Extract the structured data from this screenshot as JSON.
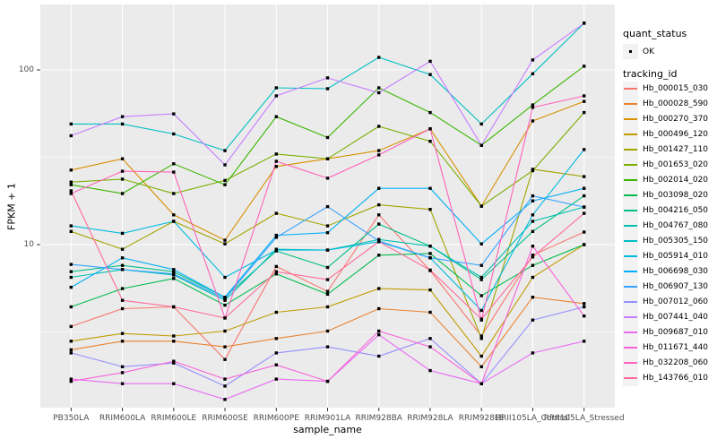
{
  "figure": {
    "xlabel": "sample_name",
    "ylabel": "FPKM + 1",
    "y_tick_labels": [
      "100",
      "10"
    ],
    "legend": {
      "quant_status_title": "quant_status",
      "quant_status_items": [
        {
          "label": "OK",
          "marker": "black-point"
        }
      ],
      "tracking_id_title": "tracking_id"
    },
    "colors": {
      "panel_background": "#EBEBEB",
      "gridline": "#FFFFFF",
      "tick_text": "#4D4D4D",
      "legend_key_background": "#F2F2F2",
      "point_marker": "#000000"
    }
  },
  "chart_data": {
    "type": "line",
    "title": "",
    "xlabel": "sample_name",
    "ylabel": "FPKM + 1",
    "yscale": "log10",
    "ylim": [
      1.17,
      237
    ],
    "y_major_gridlines": [
      10,
      100
    ],
    "y_minor_gridlines": [
      3.162,
      31.623
    ],
    "grid": "on",
    "legend_position": "right",
    "marker": "small-black-square",
    "categories": [
      "PB350LA",
      "RRIM600LA",
      "RRIM600LE",
      "RRIM600SE",
      "RRIM600PE",
      "RRIM901LA",
      "RRIM928BA",
      "RRIM928LA",
      "RRIM928LE",
      "RRII105LA_Control",
      "RRII105LA_Stressed"
    ],
    "series": [
      {
        "name": "Hb_000015_030",
        "color": "#F8766D",
        "values": [
          3.4,
          4.3,
          4.4,
          2.2,
          7.5,
          5.4,
          14.8,
          7.1,
          3.0,
          8.7,
          11.8
        ]
      },
      {
        "name": "Hb_000028_590",
        "color": "#EA8331",
        "values": [
          2.5,
          2.8,
          2.8,
          2.6,
          2.9,
          3.2,
          4.3,
          4.1,
          2.0,
          5.0,
          4.6
        ]
      },
      {
        "name": "Hb_000270_370",
        "color": "#D89000",
        "values": [
          26.7,
          31.0,
          14.8,
          10.6,
          28.0,
          31.0,
          34.5,
          46.0,
          16.6,
          51.0,
          66.0
        ]
      },
      {
        "name": "Hb_000496_120",
        "color": "#C09B00",
        "values": [
          2.8,
          3.1,
          3.0,
          3.2,
          4.1,
          4.4,
          5.6,
          5.5,
          2.3,
          6.5,
          10.0
        ]
      },
      {
        "name": "Hb_001427_110",
        "color": "#A3A500",
        "values": [
          11.9,
          9.4,
          13.6,
          10.1,
          15.1,
          12.8,
          16.9,
          15.9,
          2.9,
          27.0,
          24.5
        ]
      },
      {
        "name": "Hb_001653_020",
        "color": "#7CAE00",
        "values": [
          22.8,
          23.7,
          19.6,
          23.3,
          33.0,
          31.0,
          47.5,
          39.0,
          16.6,
          26.5,
          57.0
        ]
      },
      {
        "name": "Hb_002014_020",
        "color": "#39B600",
        "values": [
          22.0,
          19.6,
          29.0,
          22.0,
          54.0,
          41.0,
          79.0,
          57.0,
          37.0,
          63.0,
          105.0
        ]
      },
      {
        "name": "Hb_003098_020",
        "color": "#00BB4E",
        "values": [
          4.4,
          5.6,
          6.4,
          4.5,
          6.8,
          5.2,
          8.7,
          8.9,
          5.1,
          7.6,
          10.0
        ]
      },
      {
        "name": "Hb_004216_050",
        "color": "#00C087",
        "values": [
          7.0,
          7.6,
          7.0,
          5.0,
          9.2,
          7.4,
          13.1,
          9.8,
          6.3,
          11.9,
          19.0
        ]
      },
      {
        "name": "Hb_004767_080",
        "color": "#00C0B2",
        "values": [
          6.5,
          7.2,
          6.7,
          4.8,
          9.4,
          9.3,
          10.7,
          9.8,
          6.5,
          13.6,
          16.4
        ]
      },
      {
        "name": "Hb_005305_150",
        "color": "#00BFC4",
        "values": [
          49.0,
          49.0,
          43.0,
          34.5,
          79.0,
          78.0,
          118.0,
          94.0,
          49.0,
          95.0,
          185.0
        ]
      },
      {
        "name": "Hb_005914_010",
        "color": "#00BAE0",
        "values": [
          12.8,
          11.6,
          13.6,
          6.5,
          9.3,
          9.3,
          10.4,
          8.4,
          4.2,
          14.8,
          35.0
        ]
      },
      {
        "name": "Hb_006698_030",
        "color": "#00B0F6",
        "values": [
          5.7,
          8.4,
          7.2,
          5.0,
          11.3,
          11.7,
          21.0,
          21.0,
          10.1,
          17.8,
          21.0
        ]
      },
      {
        "name": "Hb_006907_130",
        "color": "#35A2FF",
        "values": [
          7.7,
          7.2,
          6.8,
          4.9,
          11.0,
          16.5,
          10.5,
          8.4,
          7.6,
          19.0,
          16.4
        ]
      },
      {
        "name": "Hb_007012_060",
        "color": "#9590FF",
        "values": [
          2.4,
          2.0,
          2.1,
          1.55,
          2.4,
          2.6,
          2.3,
          2.9,
          1.6,
          3.7,
          4.4
        ]
      },
      {
        "name": "Hb_007441_040",
        "color": "#C77CFF",
        "values": [
          42.0,
          54.0,
          56.0,
          28.6,
          71.0,
          90.0,
          74.0,
          112.0,
          37.0,
          114.0,
          185.0
        ]
      },
      {
        "name": "Hb_009687_010",
        "color": "#E76BF3",
        "values": [
          1.7,
          1.6,
          1.6,
          1.3,
          1.7,
          1.65,
          3.05,
          1.9,
          1.6,
          2.4,
          2.8
        ]
      },
      {
        "name": "Hb_011671_440",
        "color": "#FA62DB",
        "values": [
          1.65,
          1.85,
          2.15,
          1.7,
          2.05,
          1.65,
          3.2,
          2.6,
          1.6,
          9.8,
          3.9
        ]
      },
      {
        "name": "Hb_032208_060",
        "color": "#FF62BC",
        "values": [
          19.6,
          26.3,
          26.0,
          3.8,
          30.0,
          24.0,
          32.6,
          46.0,
          3.7,
          61.0,
          71.0
        ]
      },
      {
        "name": "Hb_143766_010",
        "color": "#FF6A98",
        "values": [
          20.3,
          4.8,
          4.4,
          3.8,
          7.0,
          6.3,
          10.4,
          7.15,
          3.75,
          8.5,
          15.1
        ]
      }
    ]
  }
}
